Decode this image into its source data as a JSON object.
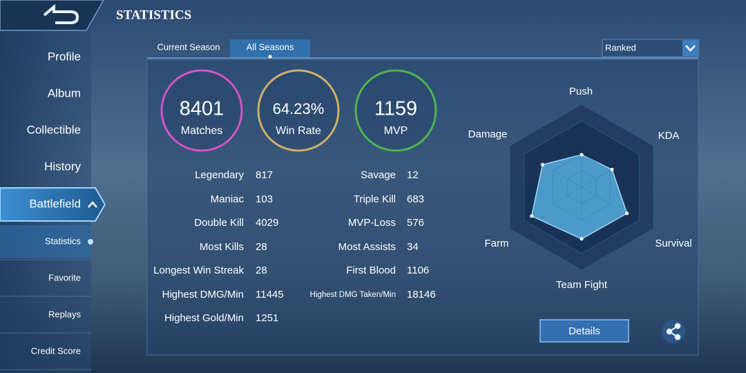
{
  "header": {
    "title": "STATISTICS"
  },
  "sidebar": {
    "items": [
      "Profile",
      "Album",
      "Collectible",
      "History",
      "Battlefield"
    ],
    "subitems": [
      "Statistics",
      "Favorite",
      "Replays",
      "Credit Score"
    ]
  },
  "tabs": [
    "Current Season",
    "All Seasons"
  ],
  "dropdown": "Ranked",
  "summary": [
    {
      "value": 8401,
      "label": "Matches"
    },
    {
      "value": "64.23%",
      "label": "Win Rate"
    },
    {
      "value": 1159,
      "label": "MVP"
    }
  ],
  "stats": {
    "left": [
      [
        "Legendary",
        817
      ],
      [
        "Maniac",
        103
      ],
      [
        "Double Kill",
        4029
      ],
      [
        "Most Kills",
        28
      ],
      [
        "Longest Win Streak",
        28
      ],
      [
        "Highest DMG/Min",
        11445
      ],
      [
        "Highest Gold/Min",
        1251
      ]
    ],
    "right": [
      [
        "Savage",
        12
      ],
      [
        "Triple Kill",
        683
      ],
      [
        "MVP-Loss",
        576
      ],
      [
        "Most Assists",
        34
      ],
      [
        "First Blood",
        1106
      ],
      [
        "Highest DMG Taken/Min",
        18146
      ]
    ]
  },
  "radar": {
    "axes": [
      "Push",
      "KDA",
      "Survival",
      "Team Fight",
      "Farm",
      "Damage"
    ],
    "values": [
      49,
      53,
      79,
      78,
      87,
      68
    ],
    "rlim": [
      0,
      100
    ]
  },
  "buttons": {
    "details": "Details"
  }
}
